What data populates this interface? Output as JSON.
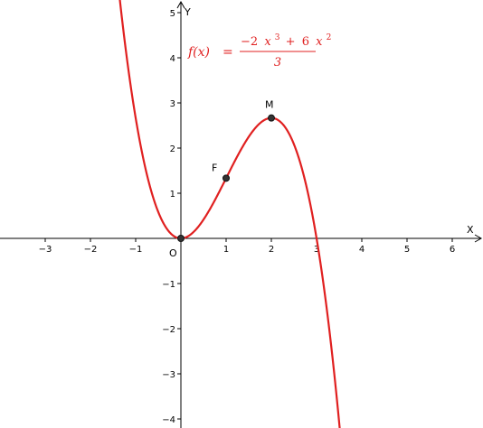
{
  "graph": {
    "function": {
      "name": "f",
      "variable": "x",
      "lhs": "f(x)",
      "equals": "=",
      "numerator": "−2 x³ + 6 x²",
      "numerator_parts": {
        "coef1": "−2",
        "var1": "x",
        "exp1": "3",
        "op": "+",
        "coef2": "6",
        "var2": "x",
        "exp2": "2"
      },
      "denominator": "3",
      "coefficients": {
        "x3": -2,
        "x2": 6,
        "x1": 0,
        "x0": 0,
        "divisor": 3
      },
      "color": "#e02020"
    },
    "axes": {
      "x_label": "X",
      "y_label": "Y",
      "origin_label": "O",
      "xlim": [
        -4.0,
        6.7
      ],
      "ylim": [
        -4.2,
        5.2
      ],
      "x_ticks": [
        -3,
        -2,
        -1,
        1,
        2,
        3,
        4,
        5,
        6
      ],
      "x_tick_labels": [
        "−3",
        "−2",
        "−1",
        "1",
        "2",
        "3",
        "4",
        "5",
        "6"
      ],
      "y_ticks": [
        -4,
        -3,
        -2,
        -1,
        1,
        2,
        3,
        4,
        5
      ],
      "y_tick_labels": [
        "−4",
        "−3",
        "−2",
        "−1",
        "1",
        "2",
        "3",
        "4",
        "5"
      ],
      "grid": false,
      "axis_color": "#000000"
    },
    "points": [
      {
        "id": "origin",
        "label": "",
        "x": 0,
        "y": 0
      },
      {
        "id": "F",
        "label": "F",
        "x": 1,
        "y": 1.3333
      },
      {
        "id": "M",
        "label": "M",
        "x": 2,
        "y": 2.6667
      }
    ],
    "point_color": "#333333"
  }
}
